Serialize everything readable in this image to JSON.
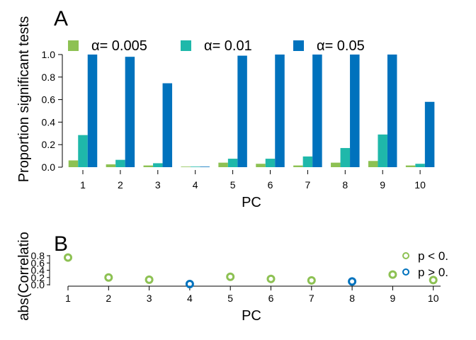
{
  "chart_data": [
    {
      "panel": "A",
      "type": "bar",
      "xlabel": "PC",
      "ylabel": "Proportion significant tests",
      "ylim": [
        0,
        1.0
      ],
      "yticks": [
        "0.0",
        "0.2",
        "0.4",
        "0.6",
        "0.8",
        "1.0"
      ],
      "categories": [
        "1",
        "2",
        "3",
        "4",
        "5",
        "6",
        "7",
        "8",
        "9",
        "10"
      ],
      "grid": false,
      "legend_position": "top",
      "series": [
        {
          "name": "α= 0.005",
          "color": "#8dc153",
          "values": [
            0.06,
            0.025,
            0.015,
            0.005,
            0.04,
            0.03,
            0.015,
            0.04,
            0.055,
            0.015
          ]
        },
        {
          "name": "α= 0.01",
          "color": "#1fb8aa",
          "values": [
            0.285,
            0.065,
            0.035,
            0.005,
            0.075,
            0.075,
            0.095,
            0.17,
            0.29,
            0.03
          ]
        },
        {
          "name": "α= 0.05",
          "color": "#0072bd",
          "values": [
            1.0,
            0.98,
            0.745,
            0.005,
            0.99,
            1.0,
            1.0,
            1.0,
            1.0,
            0.58
          ]
        }
      ]
    },
    {
      "panel": "B",
      "type": "scatter",
      "xlabel": "PC",
      "ylabel": "abs(Correlatio",
      "ylim": [
        0,
        0.8
      ],
      "yticks": [
        "0.0",
        "0.2",
        "0.4",
        "0.6",
        "0.8"
      ],
      "x": [
        "1",
        "2",
        "3",
        "4",
        "5",
        "6",
        "7",
        "8",
        "9",
        "10"
      ],
      "grid": false,
      "legend_position": "right",
      "legend": [
        {
          "label": "p < 0.",
          "color": "#8dc153"
        },
        {
          "label": "p > 0.",
          "color": "#0072bd"
        }
      ],
      "points": [
        {
          "x": 1,
          "y": 0.75,
          "group": 0
        },
        {
          "x": 2,
          "y": 0.2,
          "group": 0
        },
        {
          "x": 3,
          "y": 0.14,
          "group": 0
        },
        {
          "x": 4,
          "y": 0.02,
          "group": 1
        },
        {
          "x": 5,
          "y": 0.22,
          "group": 0
        },
        {
          "x": 6,
          "y": 0.16,
          "group": 0
        },
        {
          "x": 7,
          "y": 0.12,
          "group": 0
        },
        {
          "x": 8,
          "y": 0.09,
          "group": 1
        },
        {
          "x": 9,
          "y": 0.28,
          "group": 0
        },
        {
          "x": 10,
          "y": 0.13,
          "group": 0
        }
      ]
    }
  ]
}
